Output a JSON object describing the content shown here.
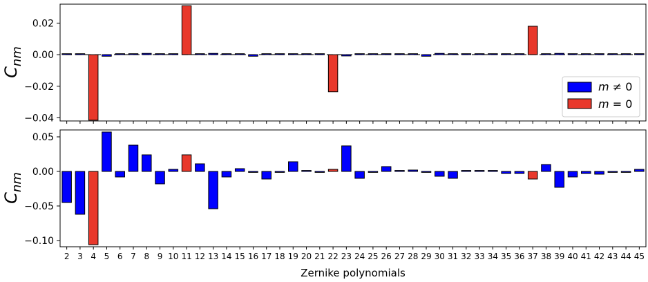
{
  "chart_data": [
    {
      "type": "bar",
      "ylabel_base": "C",
      "ylabel_sub": "nm",
      "ylim": [
        -0.042,
        0.032
      ],
      "yticks": [
        0.02,
        0.0,
        -0.02,
        -0.04
      ],
      "ytick_labels": [
        "0.02",
        "0.00",
        "−0.02",
        "−0.04"
      ],
      "zero_line": "dashed",
      "legend": {
        "placement": "lower-right",
        "entries": [
          {
            "label_base": "m",
            "label_op": "≠",
            "label_val": "0",
            "color": "#0000ff"
          },
          {
            "label_base": "m",
            "label_op": "=",
            "label_val": "0",
            "color": "#e8382b"
          }
        ]
      },
      "categories": [
        2,
        3,
        4,
        5,
        6,
        7,
        8,
        9,
        10,
        11,
        12,
        13,
        14,
        15,
        16,
        17,
        18,
        19,
        20,
        21,
        22,
        23,
        24,
        25,
        26,
        27,
        28,
        29,
        30,
        31,
        32,
        33,
        34,
        35,
        36,
        37,
        38,
        39,
        40,
        41,
        42,
        43,
        44,
        45
      ],
      "series": [
        {
          "name": "m ≠ 0",
          "color": "#0000ff",
          "values": [
            0,
            0,
            null,
            -0.001,
            0,
            0,
            0.0008,
            0,
            0,
            null,
            0,
            0.0008,
            0,
            0,
            -0.001,
            0,
            0,
            0,
            0,
            0,
            null,
            -0.0008,
            0,
            0,
            0,
            0,
            0,
            -0.001,
            0.0008,
            0,
            0,
            0,
            0,
            0,
            0,
            null,
            0,
            0.0008,
            0,
            0,
            0,
            0,
            0,
            0
          ]
        },
        {
          "name": "m = 0",
          "color": "#e8382b",
          "values": [
            null,
            null,
            -0.0415,
            null,
            null,
            null,
            null,
            null,
            null,
            0.031,
            null,
            null,
            null,
            null,
            null,
            null,
            null,
            null,
            null,
            null,
            -0.0235,
            null,
            null,
            null,
            null,
            null,
            null,
            null,
            null,
            null,
            null,
            null,
            null,
            null,
            null,
            0.018,
            null,
            null,
            null,
            null,
            null,
            null,
            null,
            null
          ]
        }
      ]
    },
    {
      "type": "bar",
      "ylabel_base": "C",
      "ylabel_sub": "nm",
      "xlabel": "Zernike polynomials",
      "ylim": [
        -0.109,
        0.06
      ],
      "yticks": [
        0.05,
        0.0,
        -0.05,
        -0.1
      ],
      "ytick_labels": [
        "0.05",
        "0.00",
        "−0.05",
        "−0.10"
      ],
      "categories": [
        2,
        3,
        4,
        5,
        6,
        7,
        8,
        9,
        10,
        11,
        12,
        13,
        14,
        15,
        16,
        17,
        18,
        19,
        20,
        21,
        22,
        23,
        24,
        25,
        26,
        27,
        28,
        29,
        30,
        31,
        32,
        33,
        34,
        35,
        36,
        37,
        38,
        39,
        40,
        41,
        42,
        43,
        44,
        45
      ],
      "series": [
        {
          "name": "m ≠ 0",
          "color": "#0000ff",
          "values": [
            -0.045,
            -0.062,
            null,
            0.057,
            -0.008,
            0.038,
            0.024,
            -0.018,
            0.003,
            null,
            0.011,
            -0.054,
            -0.008,
            0.004,
            -0.001,
            -0.011,
            -0.001,
            0.014,
            0.001,
            -0.001,
            null,
            0.037,
            -0.01,
            -0.001,
            0.007,
            0.001,
            0.002,
            -0.001,
            -0.007,
            -0.01,
            0.001,
            0.001,
            0,
            -0.003,
            -0.003,
            null,
            0.01,
            -0.023,
            -0.008,
            -0.003,
            -0.004,
            -0.001,
            -0.001,
            0.003
          ]
        },
        {
          "name": "m = 0",
          "color": "#e8382b",
          "values": [
            null,
            null,
            -0.106,
            null,
            null,
            null,
            null,
            null,
            null,
            0.024,
            null,
            null,
            null,
            null,
            null,
            null,
            null,
            null,
            null,
            null,
            0.003,
            null,
            null,
            null,
            null,
            null,
            null,
            null,
            null,
            null,
            null,
            null,
            null,
            null,
            null,
            -0.011,
            null,
            null,
            null,
            null,
            null,
            null,
            null,
            null
          ]
        }
      ]
    }
  ]
}
